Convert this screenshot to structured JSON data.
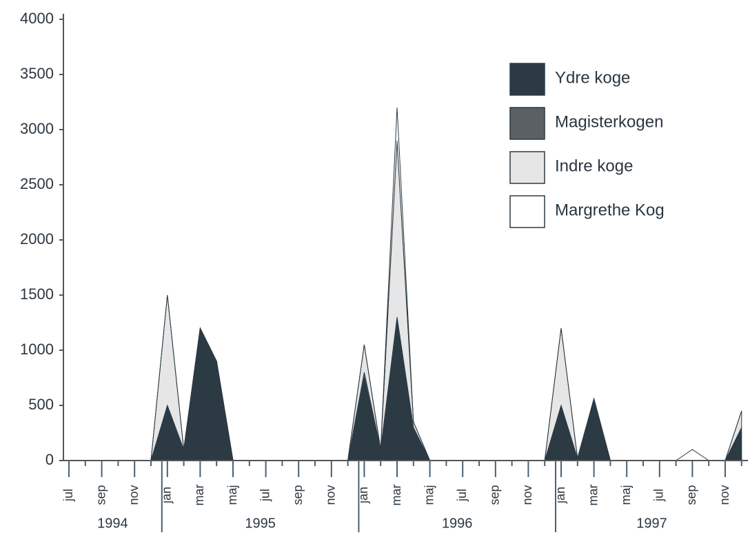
{
  "chart_data": {
    "type": "stacked-area",
    "categories": [
      "jul",
      null,
      "sep",
      null,
      "nov",
      null,
      "jan",
      null,
      "mar",
      null,
      "maj",
      null,
      "jul",
      null,
      "sep",
      null,
      "nov",
      null,
      "jan",
      null,
      "mar",
      null,
      "maj",
      null,
      "jul",
      null,
      "sep",
      null,
      "nov",
      null,
      "jan",
      null,
      "mar",
      null,
      "maj",
      null,
      "jul",
      null,
      "sep",
      null,
      "nov",
      null
    ],
    "year_labels": [
      "1994",
      "1995",
      "1996",
      "1997"
    ],
    "series": [
      {
        "name": "Ydre koge",
        "color": "#2c3a44",
        "values": [
          0,
          0,
          0,
          0,
          0,
          0,
          500,
          100,
          1200,
          900,
          0,
          0,
          0,
          0,
          0,
          0,
          0,
          0,
          750,
          100,
          1300,
          300,
          0,
          0,
          0,
          0,
          0,
          0,
          0,
          0,
          500,
          20,
          560,
          0,
          0,
          0,
          0,
          0,
          0,
          0,
          0,
          300
        ]
      },
      {
        "name": "Magisterkogen",
        "color": "#5a6064",
        "values": [
          0,
          0,
          0,
          0,
          0,
          0,
          0,
          0,
          0,
          0,
          0,
          0,
          0,
          0,
          0,
          0,
          0,
          0,
          50,
          0,
          0,
          0,
          0,
          0,
          0,
          0,
          0,
          0,
          0,
          0,
          0,
          0,
          0,
          0,
          0,
          0,
          0,
          0,
          0,
          0,
          0,
          0
        ]
      },
      {
        "name": "Indre koge",
        "color": "#e6e6e6",
        "values": [
          0,
          0,
          0,
          0,
          0,
          0,
          1000,
          0,
          0,
          0,
          0,
          0,
          0,
          0,
          0,
          0,
          0,
          0,
          250,
          0,
          1600,
          50,
          0,
          0,
          0,
          0,
          0,
          0,
          0,
          0,
          700,
          0,
          0,
          0,
          0,
          0,
          0,
          0,
          0,
          0,
          0,
          150
        ]
      },
      {
        "name": "Margrethe Kog",
        "color": "#ffffff",
        "values": [
          0,
          0,
          0,
          0,
          0,
          0,
          0,
          0,
          0,
          0,
          0,
          0,
          0,
          0,
          0,
          0,
          0,
          0,
          0,
          0,
          300,
          0,
          0,
          0,
          0,
          0,
          0,
          0,
          0,
          0,
          0,
          0,
          0,
          0,
          0,
          0,
          0,
          0,
          100,
          0,
          0,
          0
        ]
      }
    ],
    "ylim": [
      0,
      4000
    ],
    "yticks": [
      0,
      500,
      1000,
      1500,
      2000,
      2500,
      3000,
      3500,
      4000
    ]
  }
}
